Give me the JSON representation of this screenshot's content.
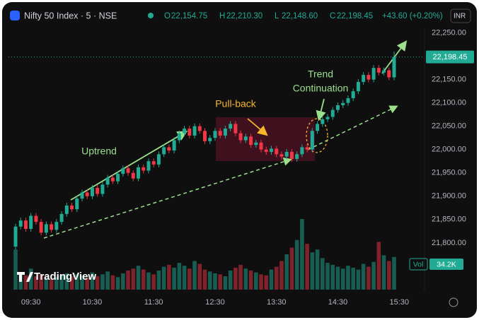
{
  "chart_data": {
    "type": "candlestick",
    "symbol": "Nifty 50 Index · 5 · NSE",
    "ohlc_header": [
      {
        "key": "O",
        "text": "22,154.75"
      },
      {
        "key": "H",
        "text": "22,210.30"
      },
      {
        "key": "L",
        "text": "22,148.60"
      },
      {
        "key": "C",
        "text": "22,198.45"
      }
    ],
    "change_text": "+43.60 (+0.20%)",
    "currency": "INR",
    "brand": "TradingView",
    "volume_title": "Vol",
    "volume_value_label": "34.2K",
    "last_price_label": "22,198.45",
    "annotations": [
      "Uptrend",
      "Pull-back",
      "Trend",
      "Continuation"
    ],
    "up_color": "#22ab94",
    "down_color": "#f23645",
    "x": [
      "09:15",
      "09:20",
      "09:25",
      "09:30",
      "09:35",
      "09:40",
      "09:45",
      "09:50",
      "09:55",
      "10:00",
      "10:05",
      "10:10",
      "10:15",
      "10:20",
      "10:25",
      "10:30",
      "10:35",
      "10:40",
      "10:45",
      "10:50",
      "10:55",
      "11:00",
      "11:05",
      "11:10",
      "11:15",
      "11:20",
      "11:25",
      "11:30",
      "11:35",
      "11:40",
      "11:45",
      "11:50",
      "11:55",
      "12:00",
      "12:05",
      "12:10",
      "12:15",
      "12:20",
      "12:25",
      "12:30",
      "12:35",
      "12:40",
      "12:45",
      "12:50",
      "12:55",
      "13:00",
      "13:05",
      "13:10",
      "13:15",
      "13:20",
      "13:25",
      "13:30",
      "13:35",
      "13:40",
      "13:45",
      "13:50",
      "13:55",
      "14:00",
      "14:05",
      "14:10",
      "14:15",
      "14:20",
      "14:25",
      "14:30",
      "14:35",
      "14:40",
      "14:45",
      "14:50",
      "14:55",
      "15:00",
      "15:05",
      "15:10",
      "15:15",
      "15:20",
      "15:25"
    ],
    "open": [
      21792,
      21835,
      21848,
      21830,
      21858,
      21845,
      21822,
      21840,
      21828,
      21845,
      21862,
      21880,
      21872,
      21895,
      21908,
      21900,
      21918,
      21905,
      21925,
      21940,
      21932,
      21948,
      21960,
      21950,
      21938,
      21962,
      21955,
      21975,
      21968,
      21990,
      22005,
      21998,
      22020,
      22035,
      22045,
      22030,
      22050,
      22040,
      22018,
      22025,
      22040,
      22030,
      22045,
      22055,
      22035,
      22020,
      22028,
      22010,
      22015,
      22000,
      21995,
      22002,
      21990,
      21985,
      21995,
      21980,
      21990,
      22005,
      22000,
      22040,
      22055,
      22065,
      22070,
      22085,
      22095,
      22100,
      22110,
      22125,
      22145,
      22160,
      22150,
      22175,
      22165,
      22170,
      22154.75
    ],
    "high": [
      21841,
      21854,
      21854,
      21864,
      21864,
      21851,
      21846,
      21846,
      21851,
      21868,
      21886,
      21886,
      21901,
      21914,
      21914,
      21924,
      21924,
      21931,
      21946,
      21946,
      21954,
      21966,
      21966,
      21956,
      21968,
      21968,
      21981,
      21981,
      21996,
      22011,
      22011,
      22026,
      22041,
      22051,
      22051,
      22056,
      22056,
      22046,
      22031,
      22046,
      22046,
      22051,
      22061,
      22061,
      22041,
      22034,
      22034,
      22021,
      22021,
      22006,
      22008,
      22008,
      21996,
      22001,
      22001,
      21996,
      22011,
      22011,
      22046,
      22061,
      22071,
      22076,
      22091,
      22101,
      22106,
      22116,
      22131,
      22151,
      22166,
      22166,
      22181,
      22181,
      22176,
      22176,
      22210.3
    ],
    "low": [
      21786,
      21829,
      21824,
      21824,
      21839,
      21816,
      21816,
      21822,
      21822,
      21839,
      21856,
      21866,
      21866,
      21889,
      21894,
      21894,
      21899,
      21899,
      21919,
      21926,
      21926,
      21942,
      21944,
      21932,
      21932,
      21949,
      21949,
      21962,
      21962,
      21984,
      21992,
      21992,
      22014,
      22029,
      22024,
      22024,
      22034,
      22012,
      22012,
      22019,
      22024,
      22024,
      22039,
      22029,
      22014,
      22014,
      22004,
      22004,
      21994,
      21989,
      21989,
      21984,
      21979,
      21979,
      21974,
      21974,
      21984,
      21994,
      21994,
      22034,
      22049,
      22059,
      22064,
      22079,
      22089,
      22094,
      22104,
      22119,
      22139,
      22144,
      22144,
      22159,
      22159,
      22148.85,
      22148.6
    ],
    "close": [
      21835,
      21848,
      21830,
      21858,
      21845,
      21822,
      21840,
      21828,
      21845,
      21862,
      21880,
      21872,
      21895,
      21908,
      21900,
      21918,
      21905,
      21925,
      21940,
      21932,
      21948,
      21960,
      21950,
      21938,
      21962,
      21955,
      21975,
      21968,
      21990,
      22005,
      21998,
      22020,
      22035,
      22045,
      22030,
      22050,
      22040,
      22018,
      22025,
      22040,
      22030,
      22045,
      22055,
      22035,
      22020,
      22028,
      22010,
      22015,
      22000,
      21995,
      22002,
      21990,
      21985,
      21995,
      21980,
      21990,
      22005,
      22000,
      22040,
      22055,
      22065,
      22070,
      22085,
      22095,
      22100,
      22110,
      22125,
      22145,
      22160,
      22150,
      22175,
      22165,
      22170,
      22154.85,
      22198.45
    ],
    "volume": [
      42000,
      18000,
      15000,
      22000,
      14000,
      16000,
      12000,
      11000,
      13000,
      15000,
      17000,
      14000,
      16000,
      15000,
      12000,
      18000,
      14000,
      16000,
      19000,
      15000,
      13000,
      17000,
      20000,
      22000,
      25000,
      21000,
      18000,
      16000,
      20000,
      24000,
      26000,
      23000,
      28000,
      25000,
      22000,
      30000,
      27000,
      21000,
      19000,
      17000,
      16000,
      14000,
      20000,
      23000,
      26000,
      22000,
      20000,
      18000,
      16000,
      15000,
      21000,
      24000,
      30000,
      37000,
      44000,
      52000,
      74000,
      48000,
      39000,
      42000,
      33000,
      28000,
      26000,
      24000,
      22000,
      25000,
      23000,
      21000,
      27000,
      24000,
      29000,
      50000,
      36000,
      30000,
      34200
    ],
    "ylim": [
      21715,
      22260
    ],
    "yticks": [
      {
        "value": 22250,
        "label": "22,250.00"
      },
      {
        "value": 22150,
        "label": "22,150.00"
      },
      {
        "value": 22100,
        "label": "22,100.00"
      },
      {
        "value": 22050,
        "label": "22,050.00"
      },
      {
        "value": 22000,
        "label": "22,000.00"
      },
      {
        "value": 21950,
        "label": "21,950.00"
      },
      {
        "value": 21900,
        "label": "21,900.00"
      },
      {
        "value": 21850,
        "label": "21,850.00"
      },
      {
        "value": 21800,
        "label": "21,800.00"
      }
    ],
    "xticks": [
      "09:30",
      "10:30",
      "11:30",
      "12:30",
      "13:30",
      "14:30",
      "15:30"
    ]
  }
}
